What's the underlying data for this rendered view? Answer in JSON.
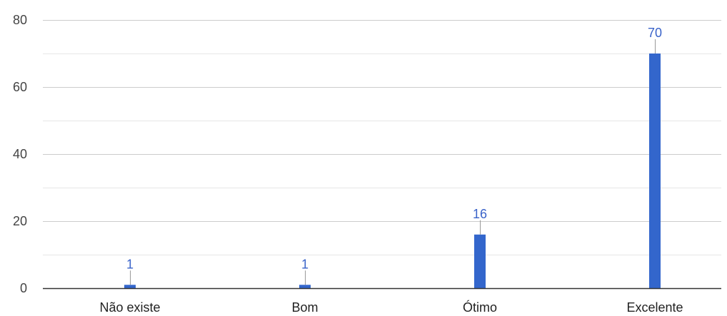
{
  "chart_data": {
    "type": "bar",
    "categories": [
      "Não existe",
      "Bom",
      "Ótimo",
      "Excelente"
    ],
    "values": [
      1,
      1,
      16,
      70
    ],
    "data_labels": [
      "1",
      "1",
      "16",
      "70"
    ],
    "y_ticks": [
      "0",
      "20",
      "40",
      "60",
      "80"
    ],
    "ylim": [
      0,
      80
    ],
    "y_tick_step": 20,
    "y_minor_step": 10,
    "grid": true,
    "legend": "none",
    "title": "",
    "xlabel": "",
    "ylabel": ""
  },
  "colors": {
    "bar": "#3366cc",
    "data_label": "#3a63c9",
    "gridline": "#dddddd",
    "baseline": "#333333",
    "leader": "#999999"
  }
}
